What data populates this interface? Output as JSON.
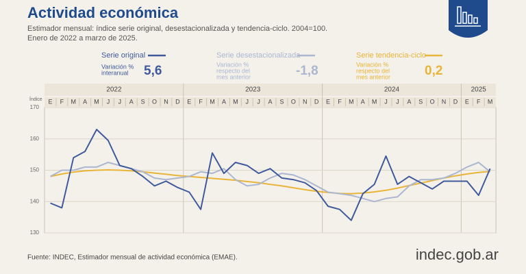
{
  "header": {
    "title": "Actividad económica",
    "subtitle_lines": [
      "Estimador mensual: índice serie original, desestacionalizada y tendencia-ciclo. 2004=100.",
      "Enero de 2022 a marzo de 2025."
    ]
  },
  "stats": [
    {
      "label_lines": [
        "Variación %",
        "interanual"
      ],
      "value": "5,6"
    },
    {
      "label_lines": [
        "Variación %",
        "respecto del",
        "mes anterior"
      ],
      "value": "-1,8"
    },
    {
      "label_lines": [
        "Variación %",
        "respecto del",
        "mes anterior"
      ],
      "value": "0,2"
    }
  ],
  "chart_data": {
    "type": "line",
    "y_label": "Índice",
    "year_labels": [
      "2022",
      "2023",
      "2024",
      "2025"
    ],
    "categories": [
      "E",
      "F",
      "M",
      "A",
      "M",
      "J",
      "J",
      "A",
      "S",
      "O",
      "N",
      "D",
      "E",
      "F",
      "M",
      "A",
      "M",
      "J",
      "J",
      "A",
      "S",
      "O",
      "N",
      "D",
      "E",
      "F",
      "M",
      "A",
      "M",
      "J",
      "J",
      "A",
      "S",
      "O",
      "N",
      "D",
      "E",
      "F",
      "M"
    ],
    "series": [
      {
        "name": "Serie original",
        "color": "#3f5a9c",
        "values": [
          139.5,
          138,
          154,
          156,
          163,
          159.5,
          151.5,
          150.5,
          148,
          145,
          146.5,
          144.5,
          143,
          137.5,
          155.5,
          149,
          152.5,
          151.5,
          149,
          150.5,
          147.5,
          147,
          146,
          143.5,
          138.5,
          137.5,
          134,
          142.5,
          145.5,
          154.5,
          145.5,
          148,
          146,
          144,
          146.5,
          146.5,
          146.5,
          142,
          150.5
        ]
      },
      {
        "name": "Serie desestacionalizada",
        "color": "#abb6d1",
        "values": [
          148,
          150,
          150,
          151,
          151,
          152.5,
          151.5,
          150.5,
          149.5,
          147.5,
          147,
          147.5,
          148,
          149.5,
          149,
          150.5,
          147,
          145,
          145.5,
          147.5,
          149,
          148.5,
          147,
          145,
          143,
          142.5,
          142,
          141,
          140,
          141,
          141.5,
          145,
          147,
          147,
          147.5,
          149,
          151,
          152.5,
          149.5
        ]
      },
      {
        "name": "Serie tendencia-ciclo",
        "color": "#e8b43a",
        "values": [
          148,
          148.8,
          149.4,
          149.8,
          150,
          150.1,
          150,
          149.8,
          149.5,
          149.1,
          148.7,
          148.3,
          148,
          147.7,
          147.4,
          147.1,
          146.8,
          146.4,
          146,
          145.5,
          145,
          144.4,
          143.8,
          143.3,
          142.9,
          142.6,
          142.5,
          142.7,
          143.1,
          143.6,
          144.3,
          145.1,
          145.9,
          146.7,
          147.5,
          148.2,
          148.8,
          149.3,
          149.6
        ]
      }
    ],
    "ylim": [
      130,
      170
    ],
    "yticks": [
      130,
      140,
      150,
      160,
      170
    ],
    "grid": true
  },
  "footer": {
    "source": "Fuente: INDEC, Estimador mensual de actividad económica (EMAE).",
    "logo": "indec.gob.ar"
  }
}
